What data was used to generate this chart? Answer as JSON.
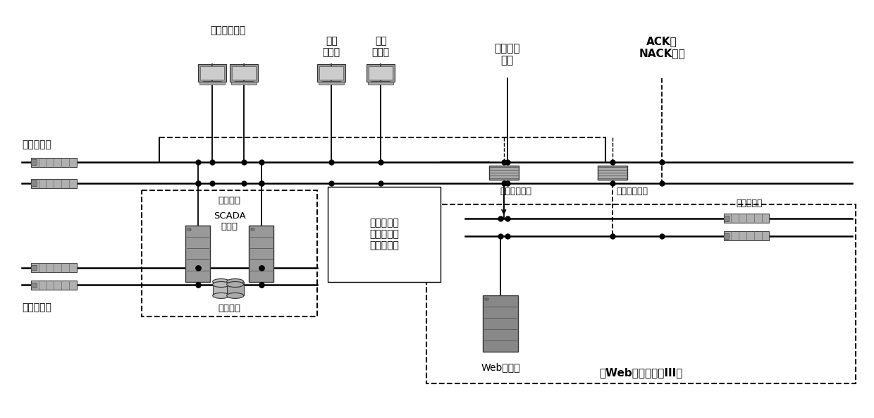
{
  "bg_color": "#ffffff",
  "fig_width": 12.4,
  "fig_height": 5.93,
  "labels": {
    "dispatch_switch": "调度交换机",
    "dispatch_workstation": "调度员工作站",
    "maintenance_workstation": "维护\n工作站",
    "wufang_workstation": "五防\n工作站",
    "zone3_data": "三区数据\n订阅",
    "ack_nack": "ACK、\nNACK报文",
    "forward_isolation": "正向物理隔离",
    "reverse_isolation": "反向物理隔离",
    "zone3_switch": "三区交换机",
    "data_collection": "数据采集",
    "scada_server": "SCADA\n服务器",
    "disk_array": "磁盘阵列",
    "front_switch": "前置交换机",
    "zone1_sync": "一区根据数\n据订阅同步\n数据到三区",
    "web_server": "Web服务器",
    "web_zone3": "（Web信息发布）III区"
  }
}
